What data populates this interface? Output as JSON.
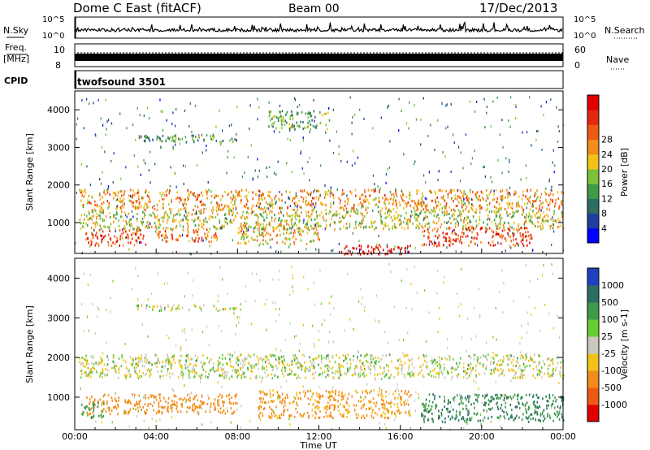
{
  "header": {
    "station": "Dome C East (fitACF)",
    "beam": "Beam 00",
    "date": "17/Dec/2013"
  },
  "nsky": {
    "label": "N.Sky",
    "tick_top": "10^5",
    "tick_bottom": "10^0"
  },
  "nsearch": {
    "label": "N.Search",
    "tick_top": "10^5",
    "tick_bottom": "10^0"
  },
  "freq": {
    "label_line1": "Freq.",
    "label_line2": "[MHz]",
    "tick_top": "10",
    "tick_bottom": "8"
  },
  "nave": {
    "label": "Nave",
    "tick_top": "60",
    "tick_bottom": "0"
  },
  "cpid": {
    "label": "CPID",
    "program": "twofsound 3501"
  },
  "time_axis": {
    "label": "Time UT",
    "ticks": [
      "00:00",
      "04:00",
      "08:00",
      "12:00",
      "16:00",
      "20:00",
      "00:00"
    ]
  },
  "range_axis": {
    "label": "Slant Range [km]",
    "ticks": [
      "1000",
      "2000",
      "3000",
      "4000"
    ]
  },
  "power_scale": {
    "label": "Power [dB]",
    "ticks": [
      "4",
      "8",
      "12",
      "16",
      "20",
      "24",
      "28"
    ],
    "colors": [
      "#0000ff",
      "#1f3fa0",
      "#2c6e60",
      "#3f9a4a",
      "#7cc23a",
      "#f3c21a",
      "#f28c1a",
      "#ee5a16",
      "#e62810",
      "#e00000"
    ]
  },
  "velocity_scale": {
    "label": "Velocity [m s-1]",
    "ticks": [
      "1000",
      "500",
      "100",
      "25",
      "-25",
      "-100",
      "-500",
      "-1000"
    ],
    "colors": [
      "#2040c0",
      "#2c6e60",
      "#3f9a4a",
      "#66cc33",
      "#c8c8c0",
      "#f3c21a",
      "#f28c1a",
      "#ee5a16",
      "#e00000"
    ]
  },
  "chart_data": [
    {
      "type": "line",
      "title": "N.Sky / N.Search",
      "ylim_log10": [
        0,
        5
      ],
      "x_hours": [
        0,
        2,
        4,
        6,
        8,
        10,
        12,
        14,
        16,
        18,
        20,
        22,
        24
      ],
      "series": [
        {
          "values": [
            200,
            300,
            220,
            260,
            180,
            240,
            300,
            240,
            200,
            230,
            210,
            200,
            180
          ]
        }
      ]
    },
    {
      "type": "line",
      "title": "Frequency / Nave",
      "ylim": [
        8,
        10
      ],
      "x_hours": [
        0,
        24
      ],
      "series": [
        {
          "values": [
            9.6,
            9.6
          ]
        }
      ]
    },
    {
      "type": "heatmap",
      "title": "Power [dB]",
      "xlim_hours": [
        0,
        24
      ],
      "ylim_km": [
        180,
        4500
      ],
      "zlim": [
        0,
        30
      ],
      "bands": [
        {
          "t": [
            0.2,
            24
          ],
          "r": [
            1350,
            1900
          ],
          "power": 20
        },
        {
          "t": [
            0.2,
            24
          ],
          "r": [
            850,
            1350
          ],
          "power": 15
        },
        {
          "t": [
            0.5,
            3.5
          ],
          "r": [
            400,
            850
          ],
          "power": 24
        },
        {
          "t": [
            4,
            7
          ],
          "r": [
            500,
            850
          ],
          "power": 22
        },
        {
          "t": [
            8,
            12
          ],
          "r": [
            450,
            1000
          ],
          "power": 18
        },
        {
          "t": [
            13,
            16.5
          ],
          "r": [
            180,
            450
          ],
          "power": 30
        },
        {
          "t": [
            17,
            22.5
          ],
          "r": [
            400,
            900
          ],
          "power": 25
        },
        {
          "t": [
            3,
            8
          ],
          "r": [
            3150,
            3350
          ],
          "power": 10
        },
        {
          "t": [
            9.5,
            12.5
          ],
          "r": [
            3500,
            4000
          ],
          "power": 12
        }
      ]
    },
    {
      "type": "heatmap",
      "title": "Velocity [m s-1]",
      "xlim_hours": [
        0,
        24
      ],
      "ylim_km": [
        180,
        4500
      ],
      "zlim": [
        -1000,
        1000
      ],
      "bands": [
        {
          "t": [
            0.2,
            24
          ],
          "r": [
            1500,
            2100
          ],
          "velocity": 0
        },
        {
          "t": [
            0.5,
            8
          ],
          "r": [
            600,
            1100
          ],
          "velocity": -200
        },
        {
          "t": [
            9,
            16.5
          ],
          "r": [
            500,
            1200
          ],
          "velocity": -150
        },
        {
          "t": [
            17,
            24
          ],
          "r": [
            400,
            1100
          ],
          "velocity": 300
        },
        {
          "t": [
            0.3,
            1.5
          ],
          "r": [
            500,
            900
          ],
          "velocity": 150
        },
        {
          "t": [
            3,
            8
          ],
          "r": [
            3200,
            3350
          ],
          "velocity": 0
        }
      ]
    }
  ]
}
